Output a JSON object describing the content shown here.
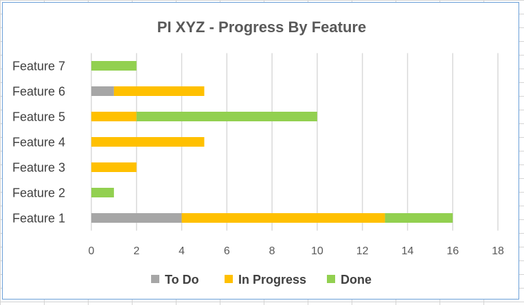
{
  "chart_data": {
    "type": "bar",
    "orientation": "horizontal",
    "stacked": true,
    "title": "PI XYZ - Progress By Feature",
    "xlabel": "",
    "ylabel": "",
    "categories": [
      "Feature 1",
      "Feature 2",
      "Feature 3",
      "Feature 4",
      "Feature 5",
      "Feature 6",
      "Feature 7"
    ],
    "series": [
      {
        "name": "To Do",
        "color": "#a6a6a6",
        "values": [
          4,
          0,
          0,
          0,
          0,
          1,
          0
        ]
      },
      {
        "name": "In Progress",
        "color": "#ffc000",
        "values": [
          9,
          0,
          2,
          5,
          2,
          4,
          0
        ]
      },
      {
        "name": "Done",
        "color": "#92d050",
        "values": [
          3,
          1,
          0,
          0,
          8,
          0,
          2
        ]
      }
    ],
    "xlim": [
      0,
      18
    ],
    "xticks": [
      0,
      2,
      4,
      6,
      8,
      10,
      12,
      14,
      16,
      18
    ],
    "grid": true,
    "legend": "bottom"
  }
}
